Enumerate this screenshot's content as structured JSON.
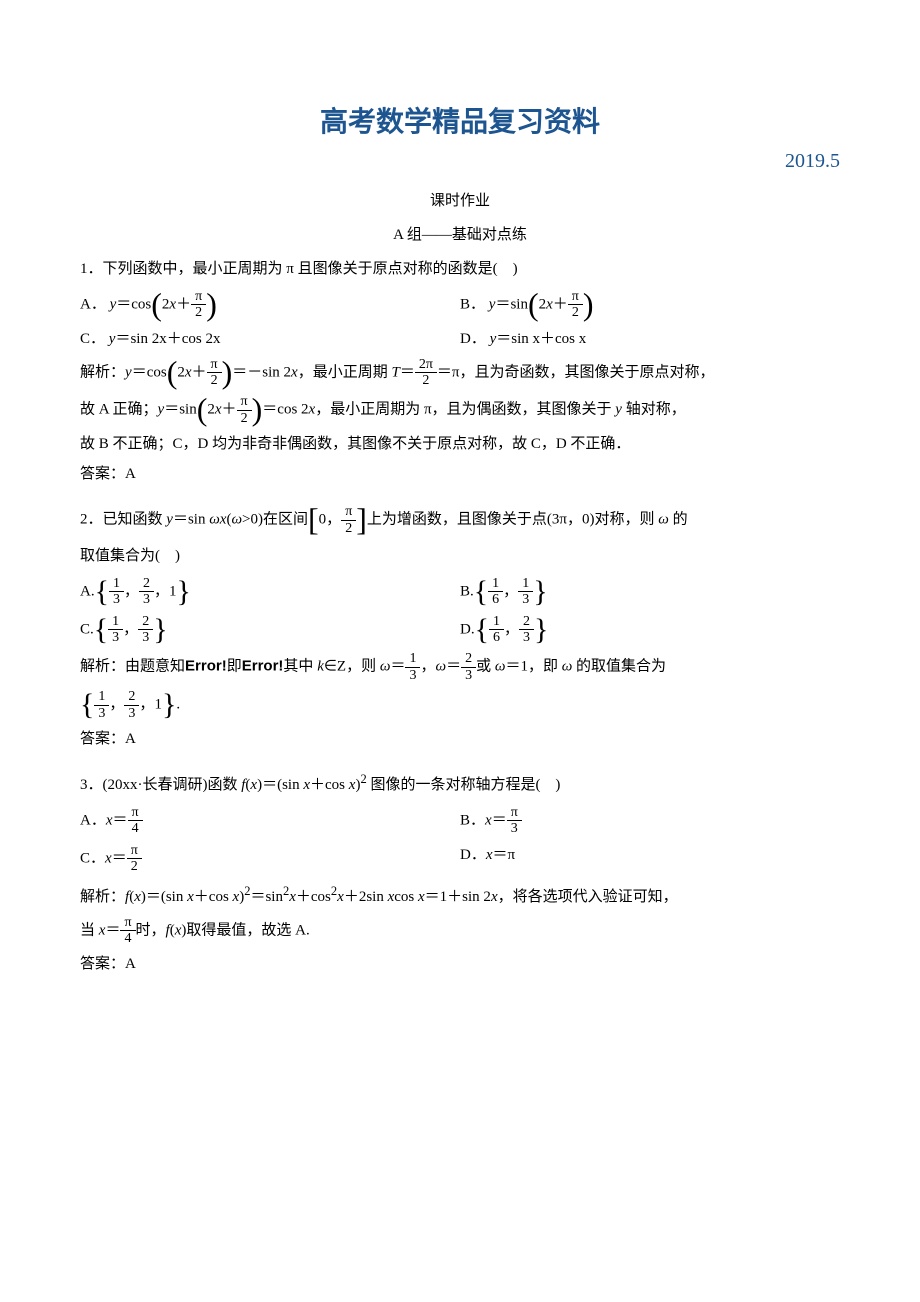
{
  "title": {
    "text": "高考数学精品复习资料",
    "color": "#1d5591",
    "fontsize": 28
  },
  "date": {
    "text": "2019.5",
    "color": "#1d5591",
    "fontsize": 20
  },
  "subtitle": "课时作业",
  "section": "A 组——基础对点练",
  "q1": {
    "stem_prefix": "1．下列函数中，最小正周期为 π 且图像关于原点对称的函数是( )",
    "optA_label": "A．",
    "optA_y": "y",
    "optA_eq": "＝cos",
    "optA_expr_left": "2",
    "optA_expr_x": "x",
    "optA_expr_plus": "＋",
    "optA_frac_num": "π",
    "optA_frac_den": "2",
    "optB_label": "B．",
    "optB_y": "y",
    "optB_eq": "＝sin",
    "optC_label": "C．",
    "optC_text_y": "y",
    "optC_text_rest": "＝sin 2x＋cos 2x",
    "optD_label": "D．",
    "optD_text_y": "y",
    "optD_text_rest": "＝sin x＋cos x",
    "analysis_label": "解析：",
    "analysis_p1_a": "y",
    "analysis_p1_b": "＝cos",
    "analysis_p1_c": "＝－sin 2",
    "analysis_p1_c2": "x",
    "analysis_p1_d": "，最小正周期 ",
    "analysis_p1_T": "T",
    "analysis_p1_eq": "＝",
    "analysis_T_num": "2π",
    "analysis_T_den": "2",
    "analysis_p1_e": "＝π，且为奇函数，其图像关于原点对称，",
    "analysis_p2_a": "故 A 正确；",
    "analysis_p2_y": "y",
    "analysis_p2_b": "＝sin",
    "analysis_p2_c": "＝cos 2",
    "analysis_p2_c2": "x",
    "analysis_p2_d": "，最小正周期为 π，且为偶函数，其图像关于 ",
    "analysis_p2_yaxis": "y",
    "analysis_p2_e": " 轴对称，",
    "analysis_p3": "故 B 不正确；C，D 均为非奇非偶函数，其图像不关于原点对称，故 C，D 不正确．",
    "answer_label": "答案：",
    "answer": "A"
  },
  "q2": {
    "stem_a": "2．已知函数 ",
    "stem_y": "y",
    "stem_b": "＝sin  ",
    "stem_wx": "ωx",
    "stem_c": "(",
    "stem_w": "ω",
    "stem_d": ">0)在区间",
    "interval_left": "0，",
    "interval_num": "π",
    "interval_den": "2",
    "stem_e": "上为增函数，且图像关于点(3π，0)对称，则 ",
    "stem_w2": "ω",
    "stem_f": " 的",
    "stem_g": "取值集合为( )",
    "optA_label": "A.",
    "optA_1n": "1",
    "optA_1d": "3",
    "optA_2n": "2",
    "optA_2d": "3",
    "optA_3": "1",
    "optB_label": "B.",
    "optB_1n": "1",
    "optB_1d": "6",
    "optB_2n": "1",
    "optB_2d": "3",
    "optC_label": "C.",
    "optC_1n": "1",
    "optC_1d": "3",
    "optC_2n": "2",
    "optC_2d": "3",
    "optD_label": "D.",
    "optD_1n": "1",
    "optD_1d": "6",
    "optD_2n": "2",
    "optD_2d": "3",
    "analysis_label": "解析：",
    "analysis_a": "由题意知",
    "analysis_err": "Error!",
    "analysis_b": "即",
    "analysis_c": "其中 ",
    "analysis_k": "k",
    "analysis_d": "∈Z，则 ",
    "analysis_w": "ω",
    "analysis_eq": "＝",
    "analysis_f1n": "1",
    "analysis_f1d": "3",
    "analysis_comma": "，",
    "analysis_f2n": "2",
    "analysis_f2d": "3",
    "analysis_e": "或 ",
    "analysis_f": "＝1，即 ",
    "analysis_g": " 的取值集合为",
    "set_1n": "1",
    "set_1d": "3",
    "set_2n": "2",
    "set_2d": "3",
    "set_3": "1",
    "set_end": ".",
    "answer_label": "答案：",
    "answer": "A"
  },
  "q3": {
    "stem_a": "3．(20xx·长春调研)函数 ",
    "stem_fx": "f",
    "stem_paren_x": "x",
    "stem_b": "(",
    "stem_c": ")＝(sin ",
    "stem_x1": "x",
    "stem_plus": "＋cos ",
    "stem_x2": "x",
    "stem_d": ")",
    "stem_sq": "2",
    "stem_e": " 图像的一条对称轴方程是( )",
    "optA_label": "A．",
    "optA_x": "x",
    "optA_eq": "＝",
    "optA_num": "π",
    "optA_den": "4",
    "optB_label": "B．",
    "optB_num": "π",
    "optB_den": "3",
    "optC_label": "C．",
    "optC_num": "π",
    "optC_den": "2",
    "optD_label": "D．",
    "optD_x": "x",
    "optD_eq": "＝π",
    "analysis_label": "解析：",
    "analysis_fx": "f",
    "analysis_a": "(",
    "analysis_x": "x",
    "analysis_b": ")＝(sin ",
    "analysis_c": "＋cos ",
    "analysis_d": ")",
    "analysis_sq": "2",
    "analysis_e": "＝sin",
    "analysis_sq2": "2",
    "analysis_f": "＋cos",
    "analysis_g": "＋2sin ",
    "analysis_h": "cos ",
    "analysis_i": "＝1＋sin 2",
    "analysis_j": "，将各选项代入验证可知，",
    "analysis_p2_a": "当 ",
    "analysis_p2_x": "x",
    "analysis_p2_eq": "＝",
    "analysis_p2_num": "π",
    "analysis_p2_den": "4",
    "analysis_p2_b": "时，",
    "analysis_p2_fx": "f",
    "analysis_p2_c": "(",
    "analysis_p2_d": ")取得最值，故选 A.",
    "answer_label": "答案：",
    "answer": "A"
  },
  "colors": {
    "text": "#000000",
    "body_fontsize": 15
  }
}
